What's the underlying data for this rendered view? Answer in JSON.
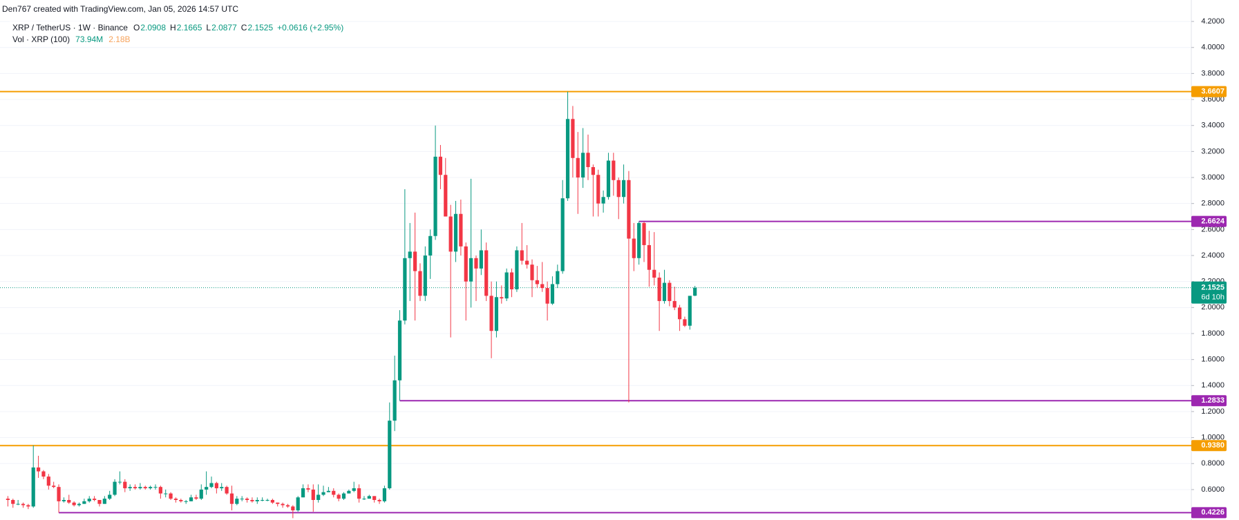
{
  "chart_data": {
    "type": "candlestick",
    "credit": "Den767 created with TradingView.com, Jan 05, 2026 14:57 UTC",
    "symbol": "XRP / TetherUS · 1W · Binance",
    "ohlc_legend": [
      {
        "key": "O",
        "value": "2.0908"
      },
      {
        "key": "H",
        "value": "2.1665"
      },
      {
        "key": "L",
        "value": "2.0877"
      },
      {
        "key": "C",
        "value": "2.1525"
      }
    ],
    "change": "+0.0616 (+2.95%)",
    "volume_legend": {
      "name": "Vol · XRP (100)",
      "value": "73.94M",
      "ma": "2.18B"
    },
    "up_color": "#089981",
    "down_color": "#f23645",
    "ylim": [
      0.366,
      4.365
    ],
    "yticks": [
      {
        "value": 0.6,
        "label": "0.6000"
      },
      {
        "value": 0.8,
        "label": "0.8000"
      },
      {
        "value": 1,
        "label": "1.0000"
      },
      {
        "value": 1.2,
        "label": "1.2000"
      },
      {
        "value": 1.4,
        "label": "1.4000"
      },
      {
        "value": 1.6,
        "label": "1.6000"
      },
      {
        "value": 1.8,
        "label": "1.8000"
      },
      {
        "value": 2,
        "label": "2.0000"
      },
      {
        "value": 2.2,
        "label": "2.2000"
      },
      {
        "value": 2.4,
        "label": "2.4000"
      },
      {
        "value": 2.6,
        "label": "2.6000"
      },
      {
        "value": 2.8,
        "label": "2.8000"
      },
      {
        "value": 3,
        "label": "3.0000"
      },
      {
        "value": 3.2,
        "label": "3.2000"
      },
      {
        "value": 3.4,
        "label": "3.4000"
      },
      {
        "value": 3.6,
        "label": "3.6000"
      },
      {
        "value": 3.8,
        "label": "3.8000"
      },
      {
        "value": 4,
        "label": "4.0000"
      },
      {
        "value": 4.2,
        "label": "4.2000"
      }
    ],
    "grid": true,
    "levels": [
      {
        "value": 3.6607,
        "label": "3.6607",
        "color": "#f59d00"
      },
      {
        "value": 2.6624,
        "label": "2.6624",
        "color": "#9c27b0"
      },
      {
        "value": 1.2833,
        "label": "1.2833",
        "color": "#9c27b0"
      },
      {
        "value": 0.938,
        "label": "0.9380",
        "color": "#f59d00"
      },
      {
        "value": 0.4226,
        "label": "0.4226",
        "color": "#9c27b0"
      }
    ],
    "last_price": {
      "value": 2.1525,
      "label": "2.1525",
      "countdown": "6d 10h"
    },
    "candles": [
      [
        0.53,
        0.55,
        0.47,
        0.52
      ],
      [
        0.52,
        0.53,
        0.46,
        0.49
      ],
      [
        0.49,
        0.52,
        0.48,
        0.49
      ],
      [
        0.49,
        0.5,
        0.46,
        0.48
      ],
      [
        0.48,
        0.49,
        0.45,
        0.47
      ],
      [
        0.47,
        0.94,
        0.46,
        0.77
      ],
      [
        0.77,
        0.86,
        0.69,
        0.74
      ],
      [
        0.74,
        0.75,
        0.68,
        0.7
      ],
      [
        0.7,
        0.72,
        0.6,
        0.63
      ],
      [
        0.63,
        0.66,
        0.61,
        0.62
      ],
      [
        0.62,
        0.64,
        0.4226,
        0.51
      ],
      [
        0.51,
        0.54,
        0.5,
        0.52
      ],
      [
        0.52,
        0.56,
        0.49,
        0.5
      ],
      [
        0.5,
        0.51,
        0.47,
        0.48
      ],
      [
        0.48,
        0.5,
        0.47,
        0.49
      ],
      [
        0.49,
        0.53,
        0.49,
        0.51
      ],
      [
        0.51,
        0.55,
        0.5,
        0.53
      ],
      [
        0.53,
        0.55,
        0.51,
        0.52
      ],
      [
        0.52,
        0.52,
        0.47,
        0.49
      ],
      [
        0.49,
        0.55,
        0.49,
        0.53
      ],
      [
        0.53,
        0.59,
        0.52,
        0.56
      ],
      [
        0.56,
        0.68,
        0.55,
        0.66
      ],
      [
        0.66,
        0.74,
        0.64,
        0.66
      ],
      [
        0.66,
        0.68,
        0.58,
        0.61
      ],
      [
        0.61,
        0.64,
        0.59,
        0.62
      ],
      [
        0.62,
        0.64,
        0.6,
        0.61
      ],
      [
        0.61,
        0.65,
        0.6,
        0.62
      ],
      [
        0.62,
        0.63,
        0.6,
        0.61
      ],
      [
        0.61,
        0.63,
        0.6,
        0.62
      ],
      [
        0.62,
        0.64,
        0.6,
        0.62
      ],
      [
        0.62,
        0.63,
        0.53,
        0.57
      ],
      [
        0.57,
        0.6,
        0.54,
        0.57
      ],
      [
        0.57,
        0.58,
        0.52,
        0.53
      ],
      [
        0.53,
        0.54,
        0.5,
        0.52
      ],
      [
        0.52,
        0.53,
        0.5,
        0.51
      ],
      [
        0.51,
        0.52,
        0.49,
        0.51
      ],
      [
        0.51,
        0.56,
        0.51,
        0.54
      ],
      [
        0.54,
        0.56,
        0.52,
        0.53
      ],
      [
        0.53,
        0.64,
        0.52,
        0.6
      ],
      [
        0.6,
        0.74,
        0.56,
        0.62
      ],
      [
        0.62,
        0.7,
        0.61,
        0.65
      ],
      [
        0.65,
        0.66,
        0.57,
        0.61
      ],
      [
        0.61,
        0.65,
        0.59,
        0.62
      ],
      [
        0.62,
        0.63,
        0.56,
        0.57
      ],
      [
        0.57,
        0.63,
        0.44,
        0.49
      ],
      [
        0.49,
        0.55,
        0.48,
        0.53
      ],
      [
        0.53,
        0.55,
        0.51,
        0.53
      ],
      [
        0.53,
        0.54,
        0.5,
        0.52
      ],
      [
        0.52,
        0.54,
        0.5,
        0.51
      ],
      [
        0.51,
        0.54,
        0.49,
        0.52
      ],
      [
        0.52,
        0.54,
        0.51,
        0.52
      ],
      [
        0.52,
        0.53,
        0.51,
        0.52
      ],
      [
        0.52,
        0.53,
        0.49,
        0.5
      ],
      [
        0.5,
        0.5,
        0.47,
        0.49
      ],
      [
        0.49,
        0.5,
        0.46,
        0.48
      ],
      [
        0.48,
        0.49,
        0.46,
        0.47
      ],
      [
        0.47,
        0.48,
        0.38,
        0.44
      ],
      [
        0.44,
        0.55,
        0.43,
        0.54
      ],
      [
        0.54,
        0.64,
        0.54,
        0.61
      ],
      [
        0.61,
        0.64,
        0.58,
        0.6
      ],
      [
        0.6,
        0.64,
        0.43,
        0.52
      ],
      [
        0.52,
        0.64,
        0.5,
        0.56
      ],
      [
        0.56,
        0.63,
        0.55,
        0.58
      ],
      [
        0.58,
        0.62,
        0.58,
        0.59
      ],
      [
        0.59,
        0.61,
        0.54,
        0.56
      ],
      [
        0.56,
        0.57,
        0.51,
        0.53
      ],
      [
        0.53,
        0.58,
        0.52,
        0.57
      ],
      [
        0.57,
        0.6,
        0.57,
        0.59
      ],
      [
        0.59,
        0.66,
        0.58,
        0.61
      ],
      [
        0.61,
        0.64,
        0.5,
        0.53
      ],
      [
        0.53,
        0.55,
        0.52,
        0.53
      ],
      [
        0.53,
        0.56,
        0.53,
        0.55
      ],
      [
        0.55,
        0.55,
        0.5,
        0.52
      ],
      [
        0.52,
        0.53,
        0.49,
        0.51
      ],
      [
        0.51,
        0.63,
        0.5,
        0.61
      ],
      [
        0.61,
        1.27,
        0.6,
        1.13
      ],
      [
        1.13,
        1.63,
        1.05,
        1.44
      ],
      [
        1.44,
        1.98,
        1.2833,
        1.9
      ],
      [
        1.9,
        2.91,
        1.87,
        2.38
      ],
      [
        2.38,
        2.65,
        2.05,
        2.43
      ],
      [
        2.43,
        2.73,
        1.9,
        2.28
      ],
      [
        2.28,
        2.34,
        2.05,
        2.09
      ],
      [
        2.09,
        2.47,
        2.05,
        2.4
      ],
      [
        2.4,
        2.6,
        2.22,
        2.55
      ],
      [
        2.55,
        3.4,
        2.52,
        3.16
      ],
      [
        3.16,
        3.25,
        2.91,
        3.02
      ],
      [
        3.02,
        3.15,
        2.7,
        2.7
      ],
      [
        2.7,
        2.79,
        1.77,
        2.43
      ],
      [
        2.43,
        2.82,
        2.35,
        2.72
      ],
      [
        2.72,
        2.83,
        2.4,
        2.47
      ],
      [
        2.47,
        2.5,
        1.9,
        2.2
      ],
      [
        2.2,
        2.99,
        2.0,
        2.38
      ],
      [
        2.38,
        2.4,
        2.05,
        2.3
      ],
      [
        2.3,
        2.6,
        2.25,
        2.44
      ],
      [
        2.44,
        2.5,
        2.05,
        2.09
      ],
      [
        2.09,
        2.2,
        1.61,
        1.82
      ],
      [
        1.82,
        2.2,
        1.77,
        2.08
      ],
      [
        2.08,
        2.17,
        2.03,
        2.07
      ],
      [
        2.07,
        2.3,
        2.05,
        2.27
      ],
      [
        2.27,
        2.3,
        2.08,
        2.14
      ],
      [
        2.14,
        2.47,
        2.12,
        2.44
      ],
      [
        2.44,
        2.65,
        2.33,
        2.36
      ],
      [
        2.36,
        2.48,
        2.3,
        2.33
      ],
      [
        2.33,
        2.37,
        2.08,
        2.21
      ],
      [
        2.21,
        2.32,
        2.15,
        2.18
      ],
      [
        2.18,
        2.35,
        2.12,
        2.15
      ],
      [
        2.15,
        2.2,
        1.9,
        2.03
      ],
      [
        2.03,
        2.24,
        2.02,
        2.18
      ],
      [
        2.18,
        2.33,
        2.15,
        2.28
      ],
      [
        2.28,
        2.98,
        2.26,
        2.84
      ],
      [
        2.84,
        3.66,
        2.82,
        3.45
      ],
      [
        3.45,
        3.55,
        3.0,
        3.15
      ],
      [
        3.15,
        3.35,
        2.72,
        3.0
      ],
      [
        3.0,
        3.38,
        2.92,
        3.19
      ],
      [
        3.19,
        3.33,
        2.98,
        3.08
      ],
      [
        3.08,
        3.1,
        2.7,
        3.02
      ],
      [
        3.02,
        3.06,
        2.7,
        2.8
      ],
      [
        2.8,
        2.9,
        2.73,
        2.85
      ],
      [
        2.85,
        3.19,
        2.83,
        3.13
      ],
      [
        3.13,
        3.19,
        2.86,
        2.98
      ],
      [
        2.98,
        3.0,
        2.68,
        2.85
      ],
      [
        2.85,
        3.1,
        2.8,
        2.98
      ],
      [
        2.98,
        3.05,
        1.27,
        2.53
      ],
      [
        2.53,
        2.65,
        2.28,
        2.38
      ],
      [
        2.38,
        2.6624,
        2.33,
        2.65
      ],
      [
        2.65,
        2.66,
        2.35,
        2.48
      ],
      [
        2.48,
        2.59,
        2.16,
        2.29
      ],
      [
        2.29,
        2.58,
        2.17,
        2.23
      ],
      [
        2.23,
        2.27,
        1.82,
        2.05
      ],
      [
        2.05,
        2.29,
        2.03,
        2.19
      ],
      [
        2.19,
        2.21,
        2.01,
        2.05
      ],
      [
        2.05,
        2.16,
        1.98,
        2.0
      ],
      [
        2.0,
        2.02,
        1.82,
        1.91
      ],
      [
        1.91,
        1.93,
        1.85,
        1.86
      ],
      [
        1.86,
        2.08,
        1.83,
        2.09
      ],
      [
        2.0908,
        2.1665,
        2.0877,
        2.1525
      ]
    ]
  }
}
